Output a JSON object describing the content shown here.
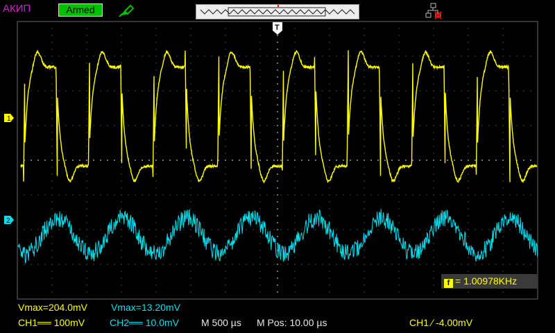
{
  "header": {
    "brand": "АКИП",
    "status": "Armed"
  },
  "colors": {
    "ch1": "#ffff00",
    "ch2": "#00e0f0",
    "grid": "#5a5a5a",
    "status_bg": "#00c000",
    "brand": "#d020d0"
  },
  "icons": {
    "probe": "probe-icon",
    "network": "network-icon",
    "trigger": "trigger-marker",
    "ch1": "ch1-marker",
    "ch2": "ch2-marker"
  },
  "markers": {
    "ch1": "1",
    "ch2": "2",
    "trigger": "T"
  },
  "frequency": {
    "icon": "f",
    "text": "= 1.00978KHz"
  },
  "measurements": {
    "ch1_vmax": "Vmax=204.0mV",
    "ch2_vmax": "Vmax=13.20mV"
  },
  "settings": {
    "ch1": "CH1══ 100mV",
    "ch2": "CH2══ 10.0mV",
    "timebase": "M 500 µs",
    "mpos": "M Pos: 10.00 µs",
    "trigger": "CH1 ∕ -4.00mV"
  }
}
